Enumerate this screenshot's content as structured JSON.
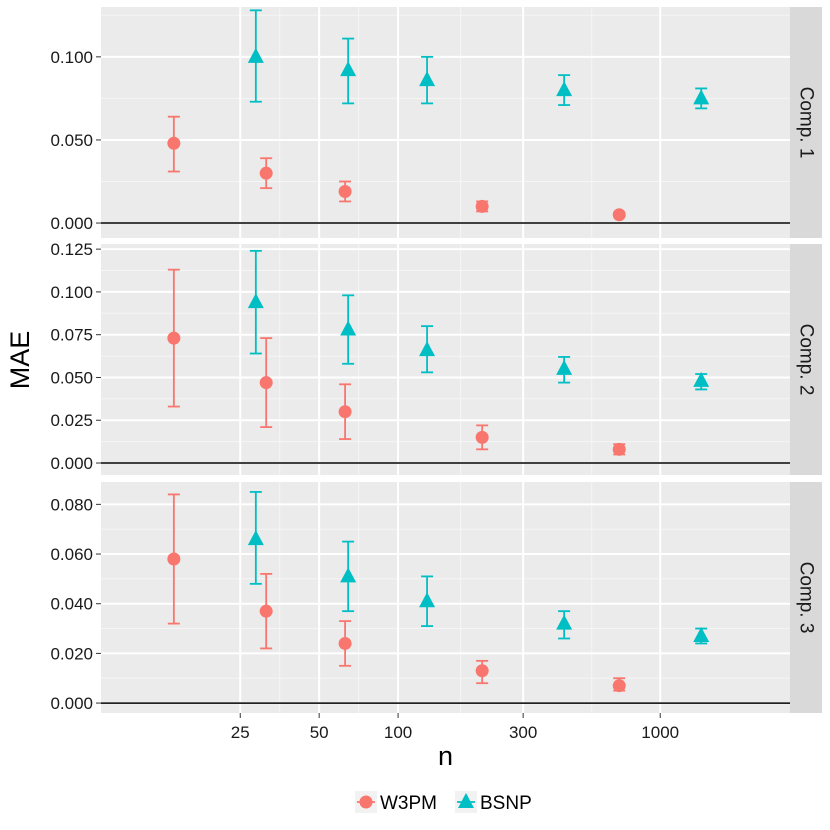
{
  "chart_data": {
    "type": "scatter",
    "subtype": "faceted point plot with error bars",
    "xlabel": "n",
    "ylabel": "MAE",
    "x_scale": "log",
    "x_ticks": [
      25,
      50,
      100,
      300,
      1000
    ],
    "x_tick_labels": [
      "25",
      "50",
      "100",
      "300",
      "1000"
    ],
    "x_groups": [
      20,
      45,
      90,
      300,
      1000
    ],
    "grid": true,
    "legend_position": "bottom",
    "series": [
      {
        "name": "W3PM",
        "color": "#F8766D",
        "marker": "circle"
      },
      {
        "name": "BSNP",
        "color": "#00BFC4",
        "marker": "triangle"
      }
    ],
    "facets": [
      {
        "label": "Comp. 1",
        "ylim": [
          -0.009,
          0.13
        ],
        "y_ticks": [
          0.0,
          0.05,
          0.1
        ],
        "y_tick_labels": [
          "0.000",
          "0.050",
          "0.100"
        ],
        "series": {
          "W3PM": {
            "y": [
              0.048,
              0.03,
              0.019,
              0.01,
              0.005
            ],
            "low": [
              0.031,
              0.021,
              0.013,
              0.007,
              0.004
            ],
            "high": [
              0.064,
              0.039,
              0.025,
              0.013,
              0.006
            ]
          },
          "BSNP": {
            "y": [
              0.1,
              0.092,
              0.086,
              0.08,
              0.075
            ],
            "low": [
              0.073,
              0.072,
              0.072,
              0.071,
              0.069
            ],
            "high": [
              0.128,
              0.111,
              0.1,
              0.089,
              0.081
            ]
          }
        }
      },
      {
        "label": "Comp. 2",
        "ylim": [
          -0.007,
          0.128
        ],
        "y_ticks": [
          0.0,
          0.025,
          0.05,
          0.075,
          0.1,
          0.125
        ],
        "y_tick_labels": [
          "0.000",
          "0.025",
          "0.050",
          "0.075",
          "0.100",
          "0.125"
        ],
        "series": {
          "W3PM": {
            "y": [
              0.073,
              0.047,
              0.03,
              0.015,
              0.008
            ],
            "low": [
              0.033,
              0.021,
              0.014,
              0.008,
              0.005
            ],
            "high": [
              0.113,
              0.073,
              0.046,
              0.022,
              0.011
            ]
          },
          "BSNP": {
            "y": [
              0.094,
              0.078,
              0.066,
              0.055,
              0.048
            ],
            "low": [
              0.064,
              0.058,
              0.053,
              0.047,
              0.043
            ],
            "high": [
              0.124,
              0.098,
              0.08,
              0.062,
              0.052
            ]
          }
        }
      },
      {
        "label": "Comp. 3",
        "ylim": [
          -0.004,
          0.089
        ],
        "y_ticks": [
          0.0,
          0.02,
          0.04,
          0.06,
          0.08
        ],
        "y_tick_labels": [
          "0.000",
          "0.020",
          "0.040",
          "0.060",
          "0.080"
        ],
        "series": {
          "W3PM": {
            "y": [
              0.058,
              0.037,
              0.024,
              0.013,
              0.007
            ],
            "low": [
              0.032,
              0.022,
              0.015,
              0.008,
              0.005
            ],
            "high": [
              0.084,
              0.052,
              0.033,
              0.017,
              0.01
            ]
          },
          "BSNP": {
            "y": [
              0.066,
              0.051,
              0.041,
              0.032,
              0.027
            ],
            "low": [
              0.048,
              0.037,
              0.031,
              0.026,
              0.024
            ],
            "high": [
              0.085,
              0.065,
              0.051,
              0.037,
              0.03
            ]
          }
        }
      }
    ]
  }
}
